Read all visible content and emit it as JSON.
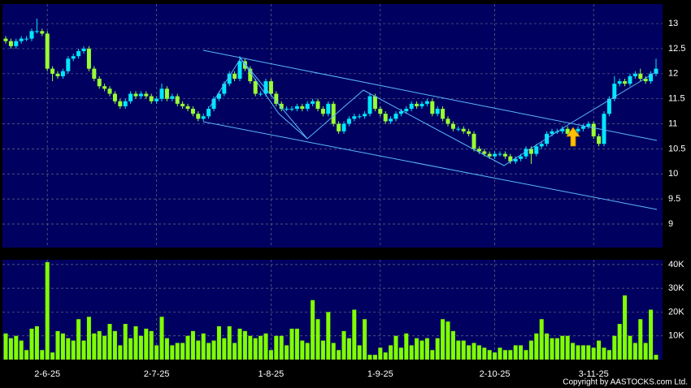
{
  "chart_data": [
    {
      "type": "candlestick",
      "categories": [
        null,
        null,
        null,
        null,
        null,
        null,
        null,
        null,
        "2-6-25",
        null,
        null,
        null,
        null,
        null,
        null,
        null,
        null,
        null,
        null,
        null,
        null,
        null,
        null,
        null,
        null,
        null,
        null,
        null,
        null,
        "2-7-25",
        null,
        null,
        null,
        null,
        null,
        null,
        null,
        null,
        null,
        null,
        null,
        null,
        null,
        null,
        null,
        null,
        null,
        null,
        null,
        null,
        null,
        "1-8-25",
        null,
        null,
        null,
        null,
        null,
        null,
        null,
        null,
        null,
        null,
        null,
        null,
        null,
        null,
        null,
        null,
        null,
        null,
        null,
        null,
        "1-9-25",
        null,
        null,
        null,
        null,
        null,
        null,
        null,
        null,
        null,
        null,
        null,
        null,
        null,
        null,
        null,
        null,
        null,
        null,
        null,
        null,
        null,
        "2-10-25",
        null,
        null,
        null,
        null,
        null,
        null,
        null,
        null,
        null,
        null,
        null,
        null,
        null,
        null,
        null,
        null,
        null,
        null,
        "3-11-25",
        null,
        null,
        null,
        null,
        null,
        null,
        null,
        null,
        null,
        null,
        null,
        null
      ],
      "open": [
        12.7,
        12.65,
        12.55,
        12.65,
        12.7,
        12.7,
        12.85,
        12.85,
        12.8,
        12.1,
        12.0,
        11.95,
        12.05,
        12.3,
        12.35,
        12.45,
        12.5,
        12.1,
        11.9,
        11.75,
        11.7,
        11.6,
        11.45,
        11.35,
        11.45,
        11.6,
        11.55,
        11.6,
        11.55,
        11.45,
        11.5,
        11.7,
        11.5,
        11.55,
        11.4,
        11.35,
        11.3,
        11.2,
        11.1,
        11.15,
        11.3,
        11.5,
        11.6,
        11.8,
        12.0,
        11.9,
        12.25,
        12.1,
        11.85,
        11.6,
        11.6,
        11.85,
        11.6,
        11.4,
        11.3,
        11.3,
        11.3,
        11.35,
        11.3,
        11.4,
        11.45,
        11.3,
        11.2,
        11.4,
        11.0,
        10.85,
        11.0,
        11.1,
        11.15,
        11.15,
        11.2,
        11.55,
        11.3,
        11.2,
        11.05,
        11.1,
        11.2,
        11.25,
        11.3,
        11.4,
        11.35,
        11.4,
        11.45,
        11.2,
        11.3,
        11.1,
        11.0,
        10.9,
        10.9,
        10.85,
        10.8,
        10.5,
        10.45,
        10.4,
        10.35,
        10.4,
        10.4,
        10.35,
        10.25,
        10.3,
        10.35,
        10.5,
        10.4,
        10.55,
        10.6,
        10.8,
        10.85,
        10.85,
        10.9,
        10.8,
        10.85,
        10.9,
        10.95,
        11.0,
        10.75,
        10.6,
        11.2,
        11.5,
        11.8,
        11.85,
        11.8,
        11.95,
        12.0,
        11.9,
        11.85,
        12.0
      ],
      "high": [
        12.75,
        12.7,
        12.7,
        12.75,
        12.75,
        12.9,
        13.1,
        12.9,
        12.85,
        12.15,
        12.05,
        12.1,
        12.35,
        12.4,
        12.5,
        12.55,
        12.55,
        12.15,
        11.95,
        11.8,
        11.75,
        11.65,
        11.5,
        11.5,
        11.65,
        11.65,
        11.65,
        11.65,
        11.6,
        11.55,
        11.8,
        11.75,
        11.6,
        11.6,
        11.45,
        11.4,
        11.35,
        11.25,
        11.2,
        11.35,
        11.55,
        11.65,
        11.85,
        12.05,
        12.05,
        12.35,
        12.3,
        12.15,
        11.9,
        11.65,
        11.9,
        11.9,
        11.65,
        11.45,
        11.35,
        11.35,
        11.4,
        11.4,
        11.45,
        11.5,
        11.5,
        11.35,
        11.45,
        11.45,
        11.05,
        11.05,
        11.15,
        11.2,
        11.2,
        11.25,
        11.6,
        11.6,
        11.35,
        11.25,
        11.15,
        11.25,
        11.3,
        11.35,
        11.45,
        11.45,
        11.45,
        11.5,
        11.5,
        11.35,
        11.35,
        11.15,
        11.05,
        10.95,
        10.95,
        10.9,
        10.85,
        10.55,
        10.5,
        10.45,
        10.45,
        10.45,
        10.45,
        10.4,
        10.35,
        10.4,
        10.55,
        10.55,
        10.6,
        10.65,
        10.85,
        10.9,
        10.9,
        10.95,
        10.95,
        10.9,
        10.95,
        11.0,
        11.05,
        11.05,
        10.8,
        11.25,
        11.55,
        11.95,
        11.9,
        11.9,
        12.0,
        12.05,
        12.1,
        11.95,
        12.05,
        12.3
      ],
      "low": [
        12.6,
        12.5,
        12.5,
        12.6,
        12.65,
        12.65,
        12.8,
        12.75,
        12.05,
        11.85,
        11.9,
        11.9,
        12.0,
        12.25,
        12.3,
        12.4,
        12.05,
        11.85,
        11.7,
        11.65,
        11.55,
        11.4,
        11.3,
        11.3,
        11.4,
        11.5,
        11.5,
        11.5,
        11.4,
        11.4,
        11.45,
        11.45,
        11.45,
        11.35,
        11.3,
        11.25,
        11.15,
        11.05,
        11.05,
        11.1,
        11.25,
        11.45,
        11.55,
        11.75,
        11.85,
        11.85,
        12.05,
        11.8,
        11.55,
        11.55,
        11.55,
        11.55,
        11.35,
        11.25,
        11.25,
        11.25,
        11.25,
        11.25,
        11.25,
        11.35,
        11.25,
        11.15,
        11.15,
        10.95,
        10.8,
        10.8,
        10.95,
        11.05,
        11.1,
        11.1,
        11.15,
        11.25,
        11.15,
        11.0,
        11.0,
        11.05,
        11.15,
        11.2,
        11.25,
        11.3,
        11.3,
        11.35,
        11.15,
        11.15,
        11.05,
        10.95,
        10.85,
        10.85,
        10.8,
        10.75,
        10.45,
        10.4,
        10.35,
        10.3,
        10.3,
        10.35,
        10.3,
        10.2,
        10.2,
        10.25,
        10.3,
        10.2,
        10.35,
        10.5,
        10.55,
        10.75,
        10.8,
        10.8,
        10.75,
        10.75,
        10.8,
        10.85,
        10.9,
        10.7,
        10.55,
        10.55,
        11.15,
        11.45,
        11.75,
        11.75,
        11.75,
        11.9,
        11.85,
        11.8,
        11.8,
        11.95
      ],
      "close": [
        12.65,
        12.55,
        12.65,
        12.7,
        12.7,
        12.85,
        12.85,
        12.8,
        12.1,
        12.0,
        11.95,
        12.05,
        12.3,
        12.35,
        12.45,
        12.5,
        12.1,
        11.9,
        11.75,
        11.7,
        11.6,
        11.45,
        11.35,
        11.45,
        11.6,
        11.55,
        11.6,
        11.55,
        11.45,
        11.5,
        11.7,
        11.5,
        11.55,
        11.4,
        11.35,
        11.3,
        11.2,
        11.1,
        11.15,
        11.3,
        11.5,
        11.6,
        11.8,
        12.0,
        11.9,
        12.25,
        12.1,
        11.85,
        11.6,
        11.6,
        11.85,
        11.6,
        11.4,
        11.3,
        11.3,
        11.3,
        11.35,
        11.3,
        11.4,
        11.45,
        11.3,
        11.2,
        11.4,
        11.0,
        10.85,
        11.0,
        11.1,
        11.15,
        11.15,
        11.2,
        11.55,
        11.3,
        11.2,
        11.05,
        11.1,
        11.2,
        11.25,
        11.3,
        11.4,
        11.35,
        11.4,
        11.45,
        11.2,
        11.3,
        11.1,
        11.0,
        10.9,
        10.9,
        10.85,
        10.8,
        10.5,
        10.45,
        10.4,
        10.35,
        10.4,
        10.4,
        10.35,
        10.25,
        10.3,
        10.35,
        10.5,
        10.4,
        10.55,
        10.6,
        10.8,
        10.85,
        10.85,
        10.9,
        10.8,
        10.85,
        10.9,
        10.95,
        11.0,
        10.75,
        10.6,
        11.2,
        11.5,
        11.8,
        11.85,
        11.8,
        11.95,
        12.0,
        11.9,
        11.85,
        12.0,
        12.1
      ],
      "up_color": "#00e8ff",
      "down_color": "#99ff33",
      "ylim": [
        8.53,
        13.39
      ],
      "yticks": [
        9,
        9.5,
        10,
        10.5,
        11,
        11.5,
        12,
        12.5,
        13
      ],
      "grid": true,
      "source": "Copyright by AASTOCKS.com Ltd."
    },
    {
      "type": "bar",
      "color": "#80ff00",
      "values": [
        11000,
        9000,
        10000,
        8000,
        4000,
        13000,
        14000,
        4000,
        41000,
        3000,
        12000,
        11000,
        9000,
        8000,
        17000,
        8000,
        18000,
        11000,
        12000,
        10000,
        15000,
        12000,
        6000,
        15000,
        9000,
        14000,
        10000,
        13000,
        12000,
        6000,
        18000,
        9000,
        6000,
        7000,
        7000,
        10000,
        12000,
        8000,
        11000,
        7000,
        8000,
        14000,
        9000,
        14000,
        7000,
        13000,
        12000,
        10000,
        9000,
        10000,
        11000,
        4000,
        10000,
        10000,
        6000,
        13000,
        13000,
        8000,
        7000,
        25000,
        17000,
        8000,
        20000,
        7000,
        4000,
        12000,
        9000,
        21000,
        6000,
        17000,
        2000,
        2000,
        5000,
        3000,
        6000,
        10000,
        5000,
        11000,
        6000,
        9000,
        8000,
        9000,
        4000,
        9000,
        17000,
        16000,
        12000,
        8000,
        8000,
        6000,
        7000,
        6000,
        5000,
        4000,
        3000,
        5000,
        4000,
        4000,
        6000,
        6000,
        4000,
        8000,
        11000,
        17000,
        11000,
        9000,
        9000,
        10000,
        10000,
        7000,
        6000,
        6000,
        6000,
        5000,
        8000,
        5000,
        4000,
        10000,
        15000,
        27000,
        10000,
        7000,
        17000,
        7000,
        21000,
        2000
      ],
      "ylim": [
        0,
        42000
      ],
      "yticks": [
        {
          "value": 10000,
          "label": "10K"
        },
        {
          "value": 20000,
          "label": "20K"
        },
        {
          "value": 30000,
          "label": "30K"
        },
        {
          "value": 40000,
          "label": "40K"
        }
      ],
      "grid": true
    }
  ]
}
